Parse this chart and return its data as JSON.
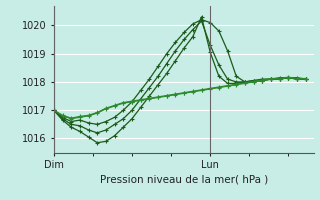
{
  "xlabel": "Pression niveau de la mer( hPa )",
  "bg_color": "#c8ece6",
  "grid_color": "#aaddcc",
  "line_color_dark": "#1a5c1a",
  "line_color_medium": "#2d8a2d",
  "ylim": [
    1015.5,
    1020.7
  ],
  "yticks": [
    1016,
    1017,
    1018,
    1019,
    1020
  ],
  "xlim": [
    0,
    30
  ],
  "dim_x": 0,
  "lun_x": 18,
  "series": [
    [
      1017.0,
      1016.75,
      1016.6,
      1016.65,
      1016.55,
      1016.5,
      1016.6,
      1016.75,
      1017.0,
      1017.3,
      1017.7,
      1018.1,
      1018.55,
      1019.0,
      1019.4,
      1019.75,
      1020.05,
      1020.2,
      1020.1,
      1019.8,
      1019.1,
      1018.2,
      1018.0,
      1018.0,
      1018.05,
      1018.1,
      1018.1,
      1018.15,
      1018.1,
      1018.1
    ],
    [
      1017.0,
      1016.7,
      1016.5,
      1016.45,
      1016.3,
      1016.2,
      1016.3,
      1016.5,
      1016.7,
      1017.0,
      1017.4,
      1017.8,
      1018.2,
      1018.65,
      1019.1,
      1019.5,
      1019.85,
      1020.15,
      1019.3,
      1018.6,
      1018.1,
      1018.0,
      1018.0,
      1018.05,
      1018.05,
      1018.1,
      1018.1,
      1018.15,
      1018.15,
      1018.1
    ],
    [
      1017.0,
      1016.65,
      1016.4,
      1016.25,
      1016.05,
      1015.85,
      1015.9,
      1016.1,
      1016.4,
      1016.7,
      1017.1,
      1017.5,
      1017.9,
      1018.3,
      1018.75,
      1019.2,
      1019.6,
      1020.3,
      1019.05,
      1018.2,
      1017.95,
      1017.95,
      1018.0,
      1018.05,
      1018.1,
      1018.1,
      1018.15,
      1018.15,
      1018.1,
      1018.1
    ],
    [
      1017.0,
      1016.8,
      1016.7,
      1016.75,
      1016.8,
      1016.9,
      1017.05,
      1017.15,
      1017.25,
      1017.3,
      1017.35,
      1017.4,
      1017.45,
      1017.5,
      1017.55,
      1017.6,
      1017.65,
      1017.7,
      1017.75,
      1017.8,
      1017.85,
      1017.9,
      1017.95,
      1018.0,
      1018.05,
      1018.1,
      1018.1,
      1018.15,
      1018.1,
      1018.1
    ],
    [
      1017.0,
      1016.82,
      1016.72,
      1016.78,
      1016.82,
      1016.92,
      1017.07,
      1017.17,
      1017.27,
      1017.32,
      1017.37,
      1017.42,
      1017.47,
      1017.52,
      1017.57,
      1017.62,
      1017.67,
      1017.72,
      1017.77,
      1017.82,
      1017.87,
      1017.92,
      1017.97,
      1018.02,
      1018.07,
      1018.12,
      1018.12,
      1018.17,
      1018.12,
      1018.12
    ]
  ]
}
